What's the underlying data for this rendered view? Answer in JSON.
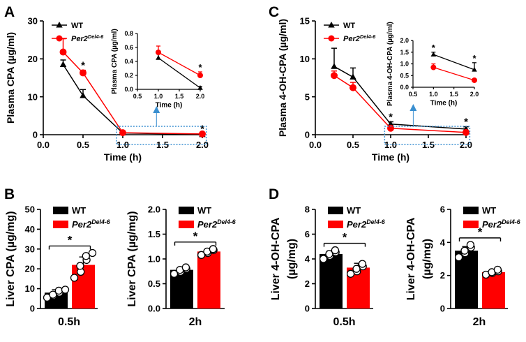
{
  "colors": {
    "wt": "#000000",
    "ko": "#ff0000",
    "highlight": "#3a8fd0"
  },
  "panels": {
    "a": "A",
    "b": "B",
    "c": "C",
    "d": "D"
  },
  "legend": {
    "wt": "WT",
    "ko_base": "Per2",
    "ko_sup": "Del4-6"
  },
  "chart_data": [
    {
      "id": "A",
      "type": "line",
      "title": "",
      "xlabel": "Time (h)",
      "ylabel": "Plasma CPA (µg/ml)",
      "xlim": [
        0,
        2
      ],
      "ylim": [
        0,
        30
      ],
      "xticks": [
        "0.0",
        "0.5",
        "1.0",
        "1.5",
        "2.0"
      ],
      "yticks": [
        "0",
        "10",
        "20",
        "30"
      ],
      "x": [
        0.25,
        0.5,
        1.0,
        2.0
      ],
      "series": [
        {
          "name": "WT",
          "values": [
            18.5,
            10.3,
            0.45,
            0.02
          ],
          "errors": [
            1.2,
            1.6,
            0.1,
            0.02
          ]
        },
        {
          "name": "Per2Del4-6",
          "values": [
            21.8,
            16.3,
            0.53,
            0.2
          ],
          "errors": [
            3.5,
            0.7,
            0.1,
            0.05
          ]
        }
      ],
      "significance": [
        {
          "x": 0.5,
          "label": "*"
        },
        {
          "x": 2.0,
          "label": "*"
        }
      ],
      "inset": {
        "xlabel": "Time (h)",
        "ylabel": "Plasma CPA (µg/ml)",
        "xlim": [
          0.5,
          2
        ],
        "ylim": [
          0,
          0.8
        ],
        "xticks": [
          "0.5",
          "1.0",
          "1.5",
          "2.0"
        ],
        "yticks": [
          "0.0",
          "0.2",
          "0.4",
          "0.6",
          "0.8"
        ],
        "x": [
          1.0,
          2.0
        ],
        "series": [
          {
            "name": "WT",
            "values": [
              0.45,
              0.02
            ],
            "errors": [
              0.06,
              0.02
            ]
          },
          {
            "name": "Per2Del4-6",
            "values": [
              0.53,
              0.2
            ],
            "errors": [
              0.09,
              0.05
            ]
          }
        ],
        "significance": [
          {
            "x": 2.0,
            "label": "*"
          }
        ]
      }
    },
    {
      "id": "C",
      "type": "line",
      "title": "",
      "xlabel": "Time (h)",
      "ylabel": "Plasma 4-OH-CPA (µg/ml)",
      "xlim": [
        0,
        2
      ],
      "ylim": [
        0,
        15
      ],
      "xticks": [
        "0.0",
        "0.5",
        "1.0",
        "1.5",
        "2.0"
      ],
      "yticks": [
        "0",
        "5",
        "10",
        "15"
      ],
      "x": [
        0.25,
        0.5,
        1.0,
        2.0
      ],
      "series": [
        {
          "name": "WT",
          "values": [
            9.0,
            7.6,
            1.4,
            0.75
          ],
          "errors": [
            2.4,
            1.2,
            0.3,
            0.3
          ]
        },
        {
          "name": "Per2Del4-6",
          "values": [
            7.8,
            6.2,
            0.85,
            0.3
          ],
          "errors": [
            0.6,
            0.7,
            0.2,
            0.1
          ]
        }
      ],
      "significance": [
        {
          "x": 1.0,
          "label": "*"
        },
        {
          "x": 2.0,
          "label": "*"
        }
      ],
      "inset": {
        "xlabel": "Time (h)",
        "ylabel": "Plasma 4-OH-CPA (µg/ml)",
        "xlim": [
          0.5,
          2
        ],
        "ylim": [
          0,
          2
        ],
        "xticks": [
          "0.5",
          "1.0",
          "1.5",
          "2.0"
        ],
        "yticks": [
          "0.0",
          "0.5",
          "1.0",
          "1.5",
          "2.0"
        ],
        "x": [
          1.0,
          2.0
        ],
        "series": [
          {
            "name": "WT",
            "values": [
              1.4,
              0.75
            ],
            "errors": [
              0.1,
              0.3
            ]
          },
          {
            "name": "Per2Del4-6",
            "values": [
              0.85,
              0.3
            ],
            "errors": [
              0.15,
              0.06
            ]
          }
        ],
        "significance": [
          {
            "x": 1.0,
            "label": "*"
          },
          {
            "x": 2.0,
            "label": "*"
          }
        ]
      }
    },
    {
      "id": "B1",
      "type": "bar",
      "title": "",
      "ylabel": "Liver CPA (µg/mg)",
      "xlabel": "0.5h",
      "ylim": [
        0,
        50
      ],
      "yticks": [
        "0",
        "10",
        "20",
        "30",
        "40",
        "50"
      ],
      "categories": [
        "WT",
        "Per2Del4-6"
      ],
      "values": [
        8.0,
        22.0
      ],
      "errors": [
        1.5,
        4.0
      ],
      "points": [
        [
          5.5,
          6.5,
          7.0,
          8.0,
          9.0,
          9.5
        ],
        [
          15.5,
          18.5,
          21.5,
          24.5,
          26.5,
          28.0
        ]
      ],
      "significance": "*"
    },
    {
      "id": "B2",
      "type": "bar",
      "title": "",
      "ylabel": "Liver CPA (µg/mg)",
      "xlabel": "2h",
      "ylim": [
        0,
        2.0
      ],
      "yticks": [
        "0.0",
        "0.5",
        "1.0",
        "1.5",
        "2.0"
      ],
      "categories": [
        "WT",
        "Per2Del4-6"
      ],
      "values": [
        0.78,
        1.15
      ],
      "errors": [
        0.05,
        0.05
      ],
      "points": [
        [
          0.7,
          0.74,
          0.78,
          0.8,
          0.83
        ],
        [
          1.08,
          1.12,
          1.15,
          1.18,
          1.2
        ]
      ],
      "significance": "*"
    },
    {
      "id": "D1",
      "type": "bar",
      "title": "",
      "ylabel": "Liver 4-OH-CPA (µg/mg)",
      "xlabel": "0.5h",
      "ylim": [
        0,
        8
      ],
      "yticks": [
        "0",
        "2",
        "4",
        "6",
        "8"
      ],
      "categories": [
        "WT",
        "Per2Del4-6"
      ],
      "values": [
        4.4,
        3.3
      ],
      "errors": [
        0.25,
        0.35
      ],
      "points": [
        [
          4.0,
          4.25,
          4.4,
          4.55,
          4.7
        ],
        [
          2.8,
          3.0,
          3.2,
          3.4,
          3.6
        ]
      ],
      "significance": "*"
    },
    {
      "id": "D2",
      "type": "bar",
      "title": "",
      "ylabel": "Liver 4-OH-CPA (µg/mg)",
      "xlabel": "2h",
      "ylim": [
        0,
        6
      ],
      "yticks": [
        "0",
        "2",
        "4",
        "6"
      ],
      "categories": [
        "WT",
        "Per2Del4-6"
      ],
      "values": [
        3.5,
        2.2
      ],
      "errors": [
        0.25,
        0.1
      ],
      "points": [
        [
          3.1,
          3.35,
          3.5,
          3.7,
          3.85
        ],
        [
          2.05,
          2.15,
          2.2,
          2.25,
          2.35
        ]
      ],
      "significance": "*"
    }
  ]
}
